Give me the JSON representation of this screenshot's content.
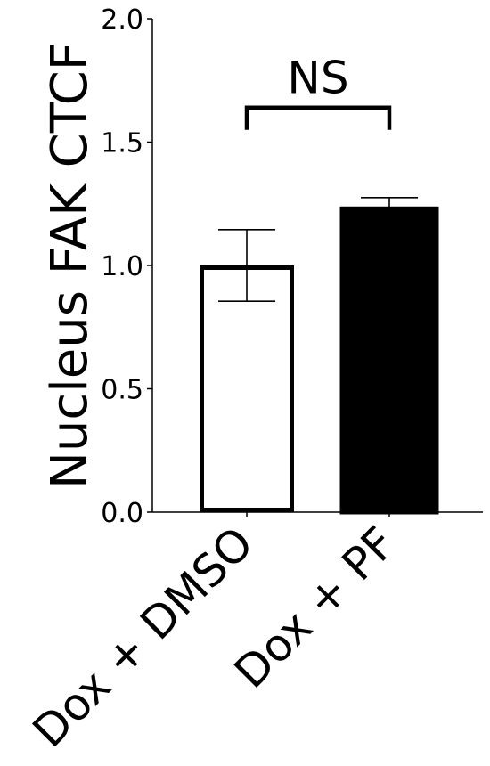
{
  "chart_data": {
    "type": "bar",
    "title": "",
    "xlabel": "",
    "ylabel": "Nucleus FAK CTCF",
    "ylim": [
      0,
      2.0
    ],
    "yticks": [
      0.0,
      0.5,
      1.0,
      1.5,
      2.0
    ],
    "ytick_labels": [
      "0.0",
      "0.5",
      "1.0",
      "1.5",
      "2.0"
    ],
    "categories": [
      "Dox + DMSO",
      "Dox + PF"
    ],
    "values": [
      1.0,
      1.23
    ],
    "errors": [
      0.145,
      0.045
    ],
    "bar_fill": [
      "#ffffff",
      "#000000"
    ],
    "bar_edge": "#000000",
    "grid": false,
    "significance": {
      "from": 0,
      "to": 1,
      "label": "NS",
      "y": 1.64
    }
  }
}
